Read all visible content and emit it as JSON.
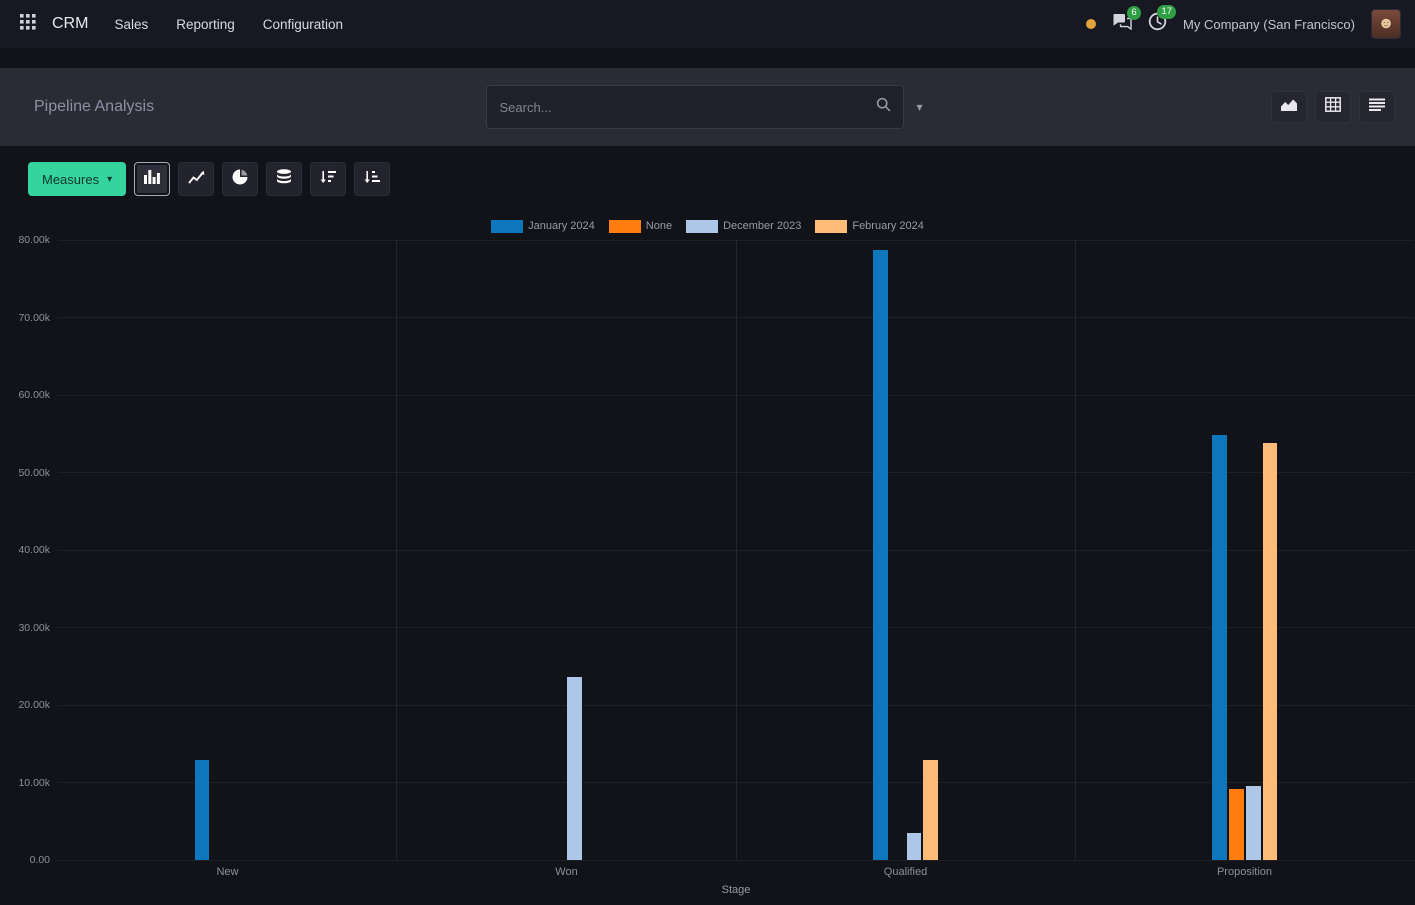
{
  "navbar": {
    "app_name": "CRM",
    "menu_items": [
      "Sales",
      "Reporting",
      "Configuration"
    ],
    "company": "My Company (San Francisco)",
    "messages_badge": "6",
    "activities_badge": "17"
  },
  "control_panel": {
    "title": "Pipeline Analysis",
    "search_placeholder": "Search..."
  },
  "toolbar": {
    "measures_label": "Measures"
  },
  "icons": {
    "caret_down": "▾"
  },
  "colors": {
    "accent_success": "#35d39e",
    "badge_green": "#2f9e44",
    "presence_orange": "#e3a23c",
    "panel_bg": "#2b2b35",
    "page_bg": "#121219"
  },
  "chart_data": {
    "type": "bar",
    "title": "",
    "xlabel": "Stage",
    "ylabel": "",
    "ylim": [
      0,
      80000
    ],
    "y_tick_labels_top_to_bottom": [
      "80.00k",
      "70.00k",
      "60.00k",
      "50.00k",
      "40.00k",
      "30.00k",
      "20.00k",
      "10.00k",
      "0.00"
    ],
    "grid": true,
    "legend_position": "top",
    "categories": [
      "New",
      "Won",
      "Qualified",
      "Proposition"
    ],
    "series": [
      {
        "name": "January 2024",
        "color": "#0d76bd",
        "values": [
          12900,
          0,
          78700,
          54800
        ]
      },
      {
        "name": "None",
        "color": "#ff7d0e",
        "values": [
          0,
          0,
          0,
          9200
        ]
      },
      {
        "name": "December 2023",
        "color": "#aec7e8",
        "values": [
          0,
          23600,
          3500,
          9600
        ]
      },
      {
        "name": "February 2024",
        "color": "#ffbb78",
        "values": [
          0,
          0,
          12900,
          53800
        ]
      }
    ]
  }
}
